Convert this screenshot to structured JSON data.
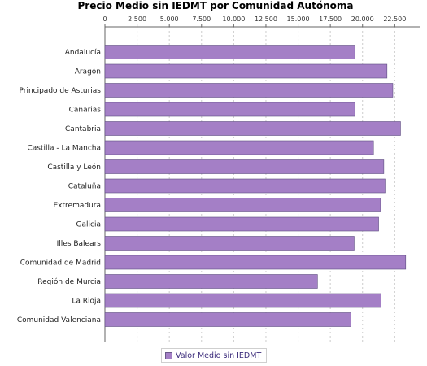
{
  "chart_data": {
    "type": "bar",
    "orientation": "horizontal",
    "title": "Precio Medio sin IEDMT por Comunidad Autónoma",
    "categories": [
      "Andalucía",
      "Aragón",
      "Principado de Asturias",
      "Canarias",
      "Cantabria",
      "Castilla - La Mancha",
      "Castilla y León",
      "Cataluña",
      "Extremadura",
      "Galicia",
      "Illes Balears",
      "Comunidad de Madrid",
      "Región de Murcia",
      "La Rioja",
      "Comunidad Valenciana"
    ],
    "series": [
      {
        "name": "Valor Medio sin IEDMT",
        "values": [
          19400,
          21900,
          22350,
          19400,
          22950,
          20850,
          21650,
          21750,
          21400,
          21250,
          19350,
          23350,
          16500,
          21450,
          19100
        ]
      }
    ],
    "x_ticks": [
      "0",
      "2.500",
      "5.000",
      "7.500",
      "10.000",
      "12.500",
      "15.000",
      "17.500",
      "20.000",
      "22.500"
    ],
    "xlim": [
      0,
      24500
    ],
    "x_tick_values": [
      0,
      2500,
      5000,
      7500,
      10000,
      12500,
      15000,
      17500,
      20000,
      22500
    ],
    "grid": true,
    "legend_position": "bottom",
    "colors": {
      "bar": "#a47fc6",
      "bar_stroke": "#5e4d80",
      "grid": "#cccccc"
    }
  }
}
